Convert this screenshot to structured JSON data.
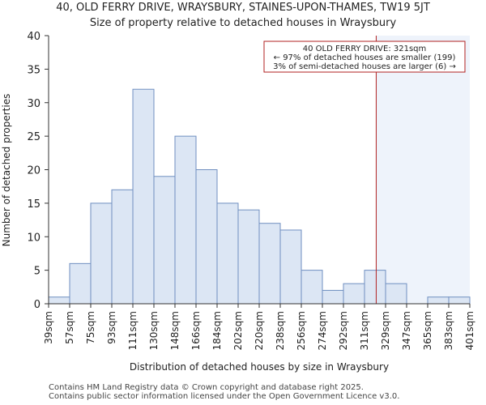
{
  "title": "40, OLD FERRY DRIVE, WRAYSBURY, STAINES-UPON-THAMES, TW19 5JT",
  "subtitle": "Size of property relative to detached houses in Wraysbury",
  "footer": {
    "line1": "Contains HM Land Registry data © Crown copyright and database right 2025.",
    "line2": "Contains public sector information licensed under the Open Government Licence v3.0."
  },
  "annotation": {
    "line1": "40 OLD FERRY DRIVE: 321sqm",
    "line2": "← 97% of detached houses are smaller (199)",
    "line3": "3% of semi-detached houses are larger (6) →"
  },
  "colors": {
    "bar_fill": "#dce6f4",
    "bar_stroke": "#6f8fc0",
    "marker": "#b22222",
    "highlight": "#eef3fb",
    "axis": "#333333"
  },
  "chart_data": {
    "type": "bar",
    "title": "40, OLD FERRY DRIVE, WRAYSBURY, STAINES-UPON-THAMES, TW19 5JT",
    "subtitle": "Size of property relative to detached houses in Wraysbury",
    "xlabel": "Distribution of detached houses by size in Wraysbury",
    "ylabel": "Number of detached properties",
    "bin_edges": [
      39,
      57,
      75,
      93,
      111,
      130,
      148,
      166,
      184,
      202,
      220,
      238,
      256,
      274,
      292,
      311,
      329,
      347,
      365,
      383,
      401
    ],
    "x_tick_labels": [
      "39sqm",
      "57sqm",
      "75sqm",
      "93sqm",
      "111sqm",
      "130sqm",
      "148sqm",
      "166sqm",
      "184sqm",
      "202sqm",
      "220sqm",
      "238sqm",
      "256sqm",
      "274sqm",
      "292sqm",
      "311sqm",
      "329sqm",
      "347sqm",
      "365sqm",
      "383sqm",
      "401sqm"
    ],
    "values": [
      1,
      6,
      15,
      17,
      32,
      19,
      25,
      20,
      15,
      14,
      12,
      11,
      5,
      2,
      3,
      5,
      3,
      0,
      1,
      1
    ],
    "ylim": [
      0,
      40
    ],
    "yticks": [
      0,
      5,
      10,
      15,
      20,
      25,
      30,
      35,
      40
    ],
    "marker_value": 321,
    "marker_label": "40 OLD FERRY DRIVE: 321sqm",
    "grid": false
  }
}
